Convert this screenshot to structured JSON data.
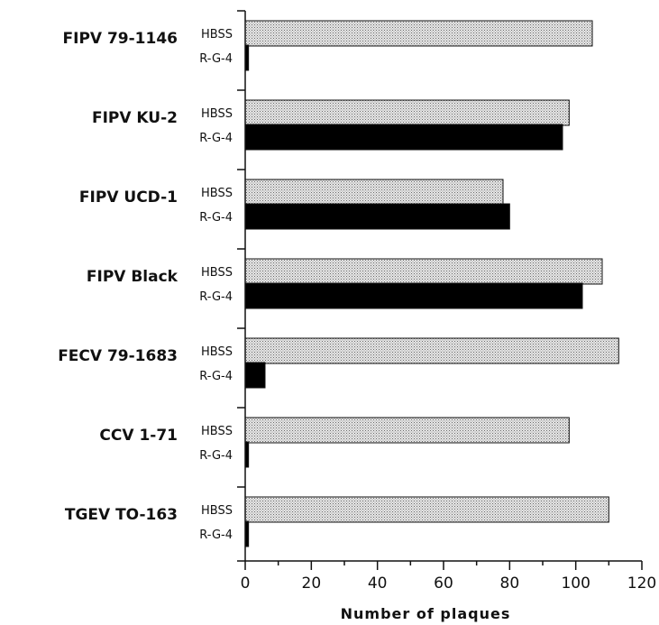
{
  "chart_data": {
    "type": "bar",
    "orientation": "horizontal",
    "categories": [
      "FIPV 79-1146",
      "FIPV KU-2",
      "FIPV UCD-1",
      "FIPV Black",
      "FECV 79-1683",
      "CCV 1-71",
      "TGEV TO-163"
    ],
    "series": [
      {
        "name": "HBSS",
        "values": [
          105,
          98,
          78,
          108,
          113,
          98,
          110
        ],
        "color": "#d9d9d9",
        "pattern": "dotted"
      },
      {
        "name": "R-G-4",
        "values": [
          1,
          96,
          80,
          102,
          6,
          1,
          1
        ],
        "color": "#000000"
      }
    ],
    "xlabel": "Number of plaques",
    "ylabel": "",
    "xlim": [
      0,
      120
    ],
    "xticks": [
      0,
      20,
      40,
      60,
      80,
      100,
      120
    ],
    "grid": false,
    "legend": "none"
  }
}
